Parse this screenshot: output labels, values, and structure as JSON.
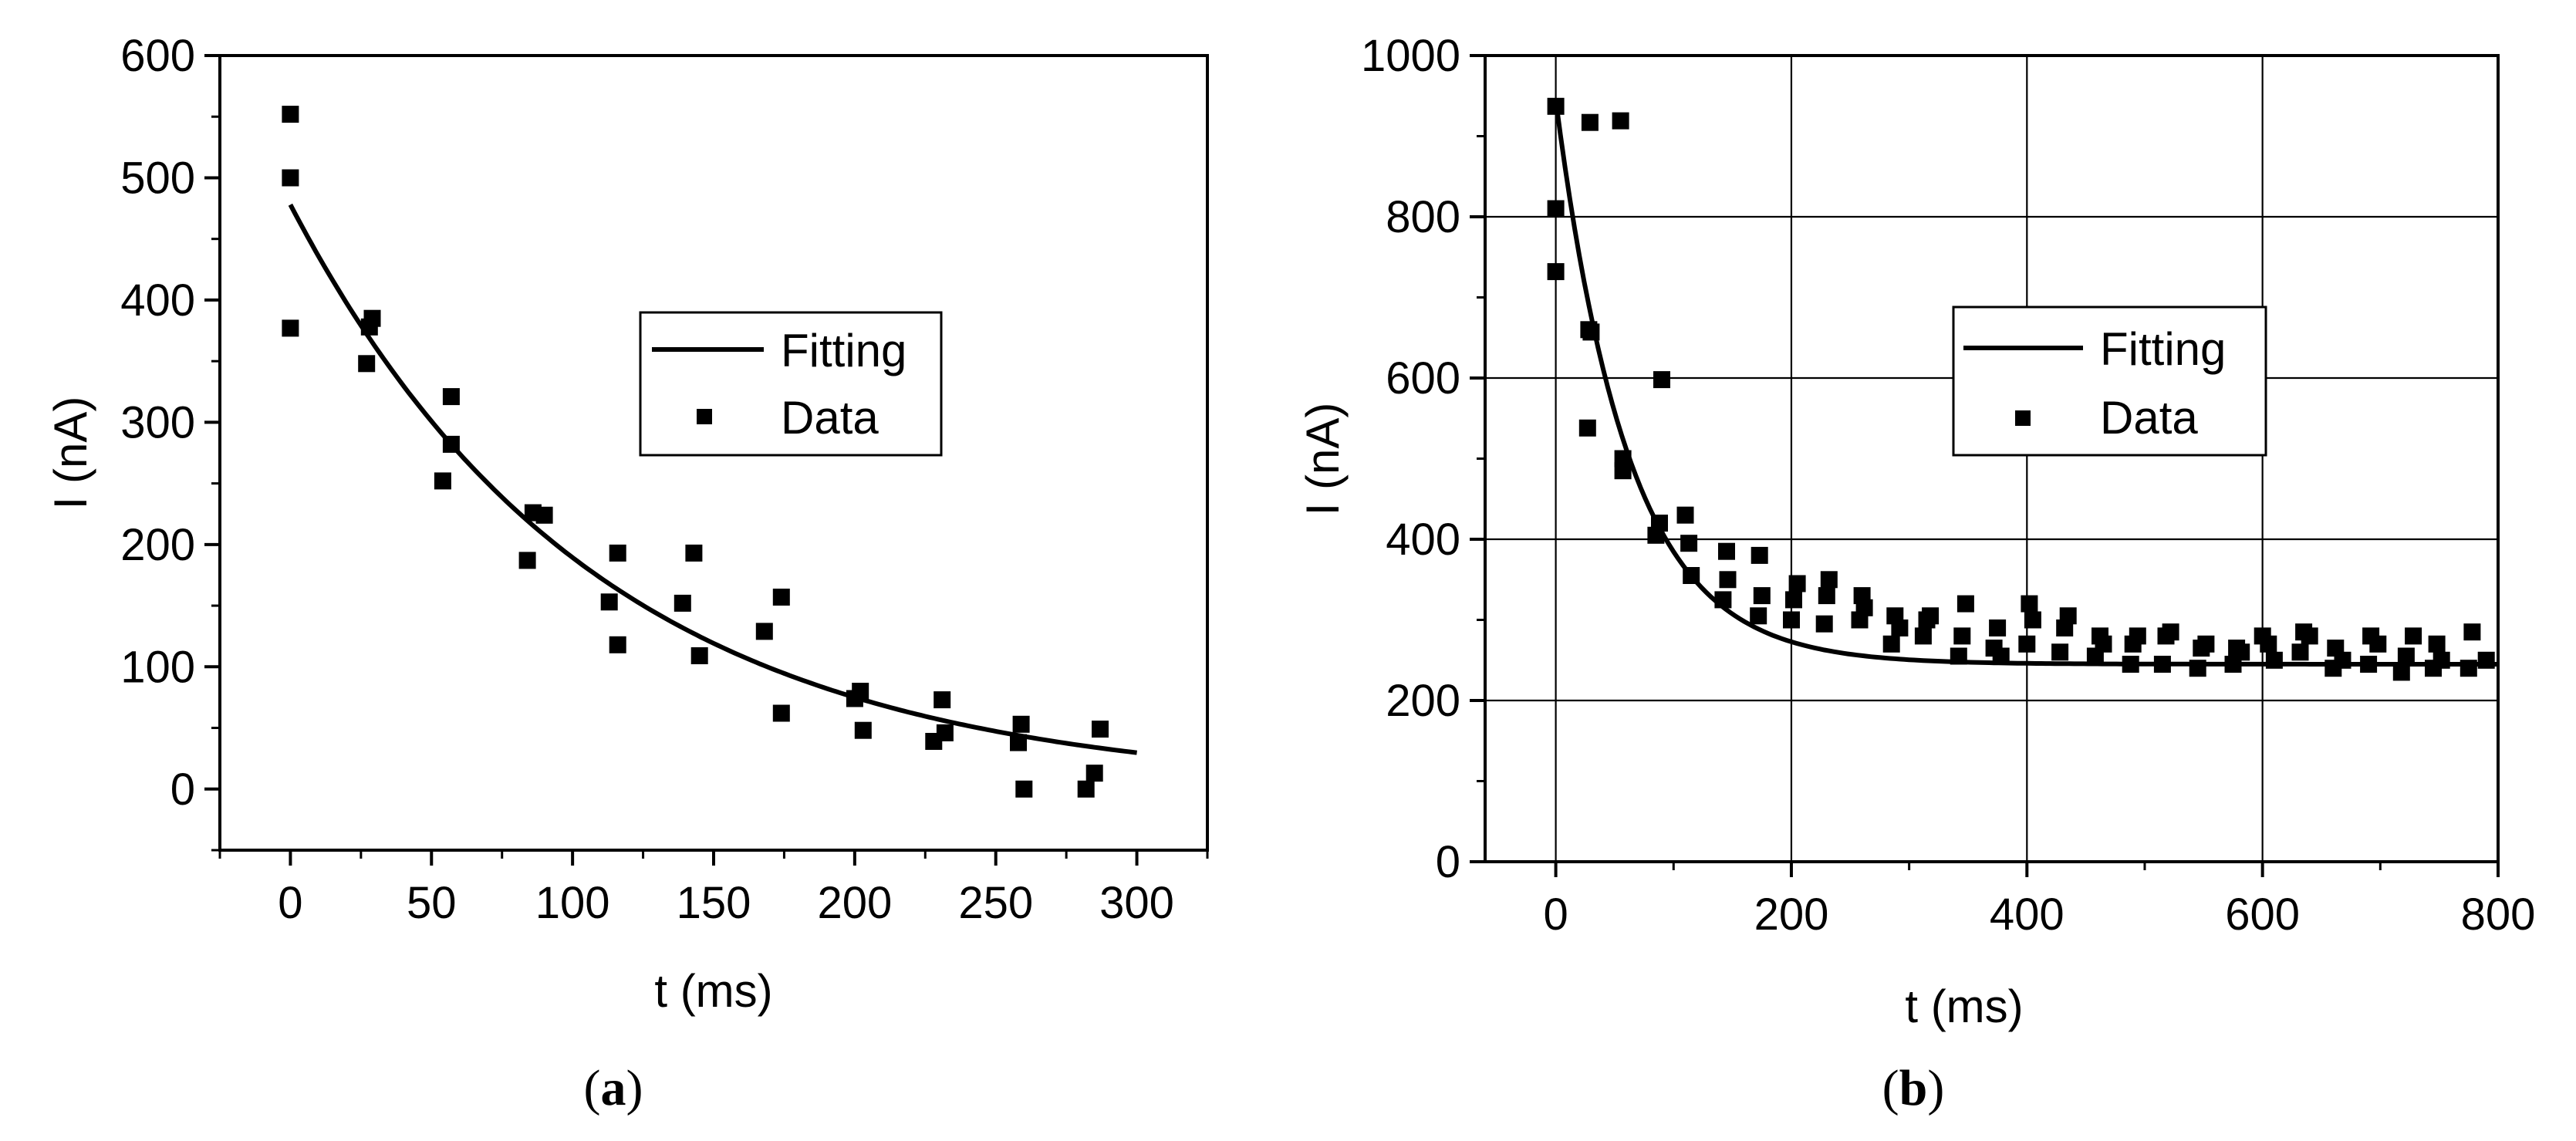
{
  "chart_data": [
    {
      "id": "a",
      "type": "scatter",
      "panel_label": "a",
      "xlabel": "t (ms)",
      "ylabel": "I (nA)",
      "xlim": [
        -25,
        325
      ],
      "ylim": [
        -50,
        600
      ],
      "xticks": [
        0,
        50,
        100,
        150,
        200,
        250,
        300
      ],
      "yticks": [
        0,
        100,
        200,
        300,
        400,
        500,
        600
      ],
      "xtick_labels": [
        "0",
        "50",
        "100",
        "150",
        "200",
        "250",
        "300"
      ],
      "ytick_labels": [
        "0",
        "100",
        "200",
        "300",
        "400",
        "500",
        "600"
      ],
      "grid": false,
      "legend": {
        "position": "center-right",
        "entries": [
          "Fitting",
          "Data"
        ]
      },
      "series": [
        {
          "name": "Data",
          "kind": "scatter",
          "x": [
            0,
            0,
            0,
            27,
            28,
            29,
            54,
            57,
            57,
            84,
            86,
            90,
            113,
            116,
            116,
            139,
            143,
            145,
            168,
            174,
            174,
            200,
            202,
            203,
            228,
            231,
            232,
            258,
            259,
            260,
            282,
            285,
            287
          ],
          "y": [
            552,
            500,
            377,
            348,
            378,
            385,
            252,
            321,
            282,
            187,
            226,
            224,
            153,
            193,
            118,
            152,
            193,
            109,
            129,
            157,
            62,
            74,
            80,
            48,
            39,
            73,
            46,
            38,
            53,
            0,
            0,
            13,
            49
          ]
        },
        {
          "name": "Fitting",
          "kind": "line",
          "model": "exp_decay",
          "y0": 0,
          "A": 478,
          "tau": 108,
          "x_range": [
            0,
            300
          ]
        }
      ]
    },
    {
      "id": "b",
      "type": "scatter",
      "panel_label": "b",
      "xlabel": "t (ms)",
      "ylabel": "I (nA)",
      "xlim": [
        -60,
        800
      ],
      "ylim": [
        0,
        1000
      ],
      "xticks": [
        0,
        200,
        400,
        600,
        800
      ],
      "yticks": [
        0,
        200,
        400,
        600,
        800,
        1000
      ],
      "xtick_labels": [
        "0",
        "200",
        "400",
        "600",
        "800"
      ],
      "ytick_labels": [
        "0",
        "200",
        "400",
        "600",
        "800",
        "1000"
      ],
      "grid": true,
      "legend": {
        "position": "center-right",
        "entries": [
          "Fitting",
          "Data"
        ]
      },
      "series": [
        {
          "name": "Data",
          "kind": "scatter",
          "x": [
            0,
            0,
            0,
            27,
            28,
            29,
            30,
            55,
            57,
            57,
            85,
            88,
            90,
            110,
            113,
            115,
            142,
            145,
            146,
            172,
            173,
            175,
            200,
            202,
            205,
            228,
            230,
            232,
            258,
            260,
            262,
            285,
            288,
            292,
            312,
            315,
            318,
            342,
            345,
            348,
            372,
            375,
            378,
            400,
            402,
            405,
            428,
            432,
            435,
            458,
            462,
            465,
            488,
            490,
            494,
            515,
            518,
            522,
            545,
            548,
            552,
            575,
            578,
            582,
            600,
            605,
            610,
            632,
            635,
            640,
            660,
            662,
            668,
            690,
            692,
            698,
            718,
            722,
            728,
            745,
            748,
            752,
            775,
            778,
            790
          ],
          "y": [
            937,
            810,
            732,
            538,
            660,
            917,
            657,
            919,
            485,
            500,
            405,
            420,
            598,
            430,
            395,
            355,
            325,
            385,
            350,
            305,
            380,
            330,
            300,
            325,
            345,
            295,
            330,
            350,
            300,
            330,
            315,
            270,
            305,
            290,
            280,
            300,
            305,
            255,
            280,
            320,
            265,
            290,
            255,
            270,
            320,
            300,
            260,
            290,
            305,
            255,
            280,
            270,
            245,
            270,
            280,
            245,
            280,
            285,
            240,
            265,
            270,
            245,
            265,
            260,
            280,
            270,
            250,
            260,
            285,
            280,
            240,
            265,
            250,
            245,
            280,
            270,
            235,
            255,
            280,
            240,
            270,
            250,
            240,
            285,
            250
          ]
        },
        {
          "name": "Fitting",
          "kind": "line",
          "model": "exp_decay",
          "y0": 245,
          "A": 700,
          "tau": 62,
          "x_range": [
            0,
            800
          ]
        }
      ]
    }
  ]
}
